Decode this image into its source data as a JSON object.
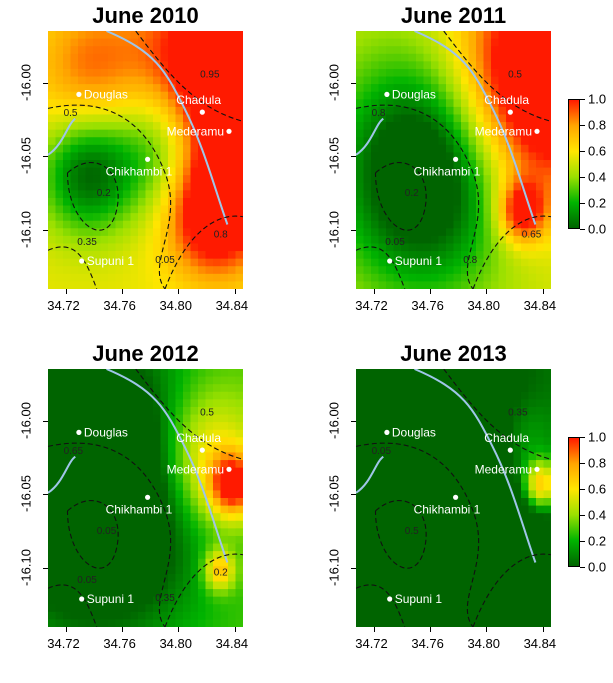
{
  "chart_data": [
    {
      "type": "heatmap",
      "title": "June 2010",
      "xticks": [
        "34.72",
        "34.76",
        "34.80",
        "34.84"
      ],
      "yticks": [
        "-16.00",
        "-16.05",
        "-16.10"
      ],
      "contour_labels": [
        "0.95",
        "0.5",
        "0.2",
        "0.35",
        "0.8",
        "0.05"
      ],
      "sites": [
        "Douglas",
        "Chadula",
        "Mederamu",
        "Chikhambi 1",
        "Supuni 1"
      ]
    },
    {
      "type": "heatmap",
      "title": "June 2011",
      "xticks": [
        "34.72",
        "34.76",
        "34.80",
        "34.84"
      ],
      "yticks": [
        "-16.00",
        "-16.05",
        "-16.10"
      ],
      "contour_labels": [
        "0.5",
        "0.8",
        "0.2",
        "0.05",
        "0.65",
        "0.8"
      ],
      "sites": [
        "Douglas",
        "Chadula",
        "Mederamu",
        "Chikhambi 1",
        "Supuni 1"
      ]
    },
    {
      "type": "heatmap",
      "title": "June 2012",
      "xticks": [
        "34.72",
        "34.76",
        "34.80",
        "34.84"
      ],
      "yticks": [
        "-16.00",
        "-16.05",
        "-16.10"
      ],
      "contour_labels": [
        "0.5",
        "0.65",
        "0.05",
        "0.05",
        "0.2",
        "0.35"
      ],
      "sites": [
        "Douglas",
        "Chadula",
        "Mederamu",
        "Chikhambi 1",
        "Supuni 1"
      ]
    },
    {
      "type": "heatmap",
      "title": "June 2013",
      "xticks": [
        "34.72",
        "34.76",
        "34.80",
        "34.84"
      ],
      "yticks": [
        "-16.00",
        "-16.05",
        "-16.10"
      ],
      "contour_labels": [
        "0.35",
        "0.05",
        "0.5"
      ],
      "sites": [
        "Douglas",
        "Chadula",
        "Mederamu",
        "Chikhambi 1",
        "Supuni 1"
      ]
    }
  ],
  "site_coords": {
    "Douglas": [
      34.729,
      -16.008
    ],
    "Chadula": [
      34.817,
      -16.02
    ],
    "Mederamu": [
      34.836,
      -16.033
    ],
    "Chikhambi 1": [
      34.778,
      -16.052
    ],
    "Supuni 1": [
      34.731,
      -16.121
    ]
  },
  "legend": {
    "ticks": [
      "0.0",
      "0.2",
      "0.4",
      "0.6",
      "0.8",
      "1.0"
    ],
    "range": [
      0,
      1
    ]
  }
}
